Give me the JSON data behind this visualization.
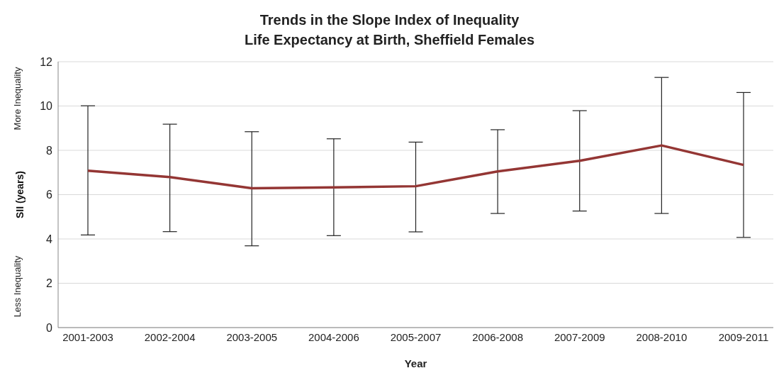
{
  "chart_data": {
    "type": "line",
    "title": "Trends in the Slope Index of Inequality\nLife Expectancy at Birth, Sheffield Females",
    "xlabel": "Year",
    "ylabel": "SII (years)",
    "annotations": [
      "More Inequality",
      "Less Inequality"
    ],
    "categories": [
      "2001-2003",
      "2002-2004",
      "2003-2005",
      "2004-2006",
      "2005-2007",
      "2006-2008",
      "2007-2009",
      "2008-2010",
      "2009-2011"
    ],
    "series": [
      {
        "color": "#943634",
        "values": [
          7.08,
          6.79,
          6.29,
          6.33,
          6.38,
          7.05,
          7.53,
          8.22,
          7.34
        ],
        "errors": [
          [
            4.18,
            10.01
          ],
          [
            4.33,
            9.18
          ],
          [
            3.69,
            8.84
          ],
          [
            4.15,
            8.52
          ],
          [
            4.32,
            8.37
          ],
          [
            5.15,
            8.93
          ],
          [
            5.26,
            9.79
          ],
          [
            5.15,
            11.29
          ],
          [
            4.07,
            10.61
          ]
        ]
      }
    ],
    "ylim": [
      0,
      12
    ],
    "yticks": [
      0,
      2,
      4,
      6,
      8,
      10,
      12
    ],
    "grid": "y",
    "legend": false,
    "marker": "none",
    "line_style": "solid"
  }
}
